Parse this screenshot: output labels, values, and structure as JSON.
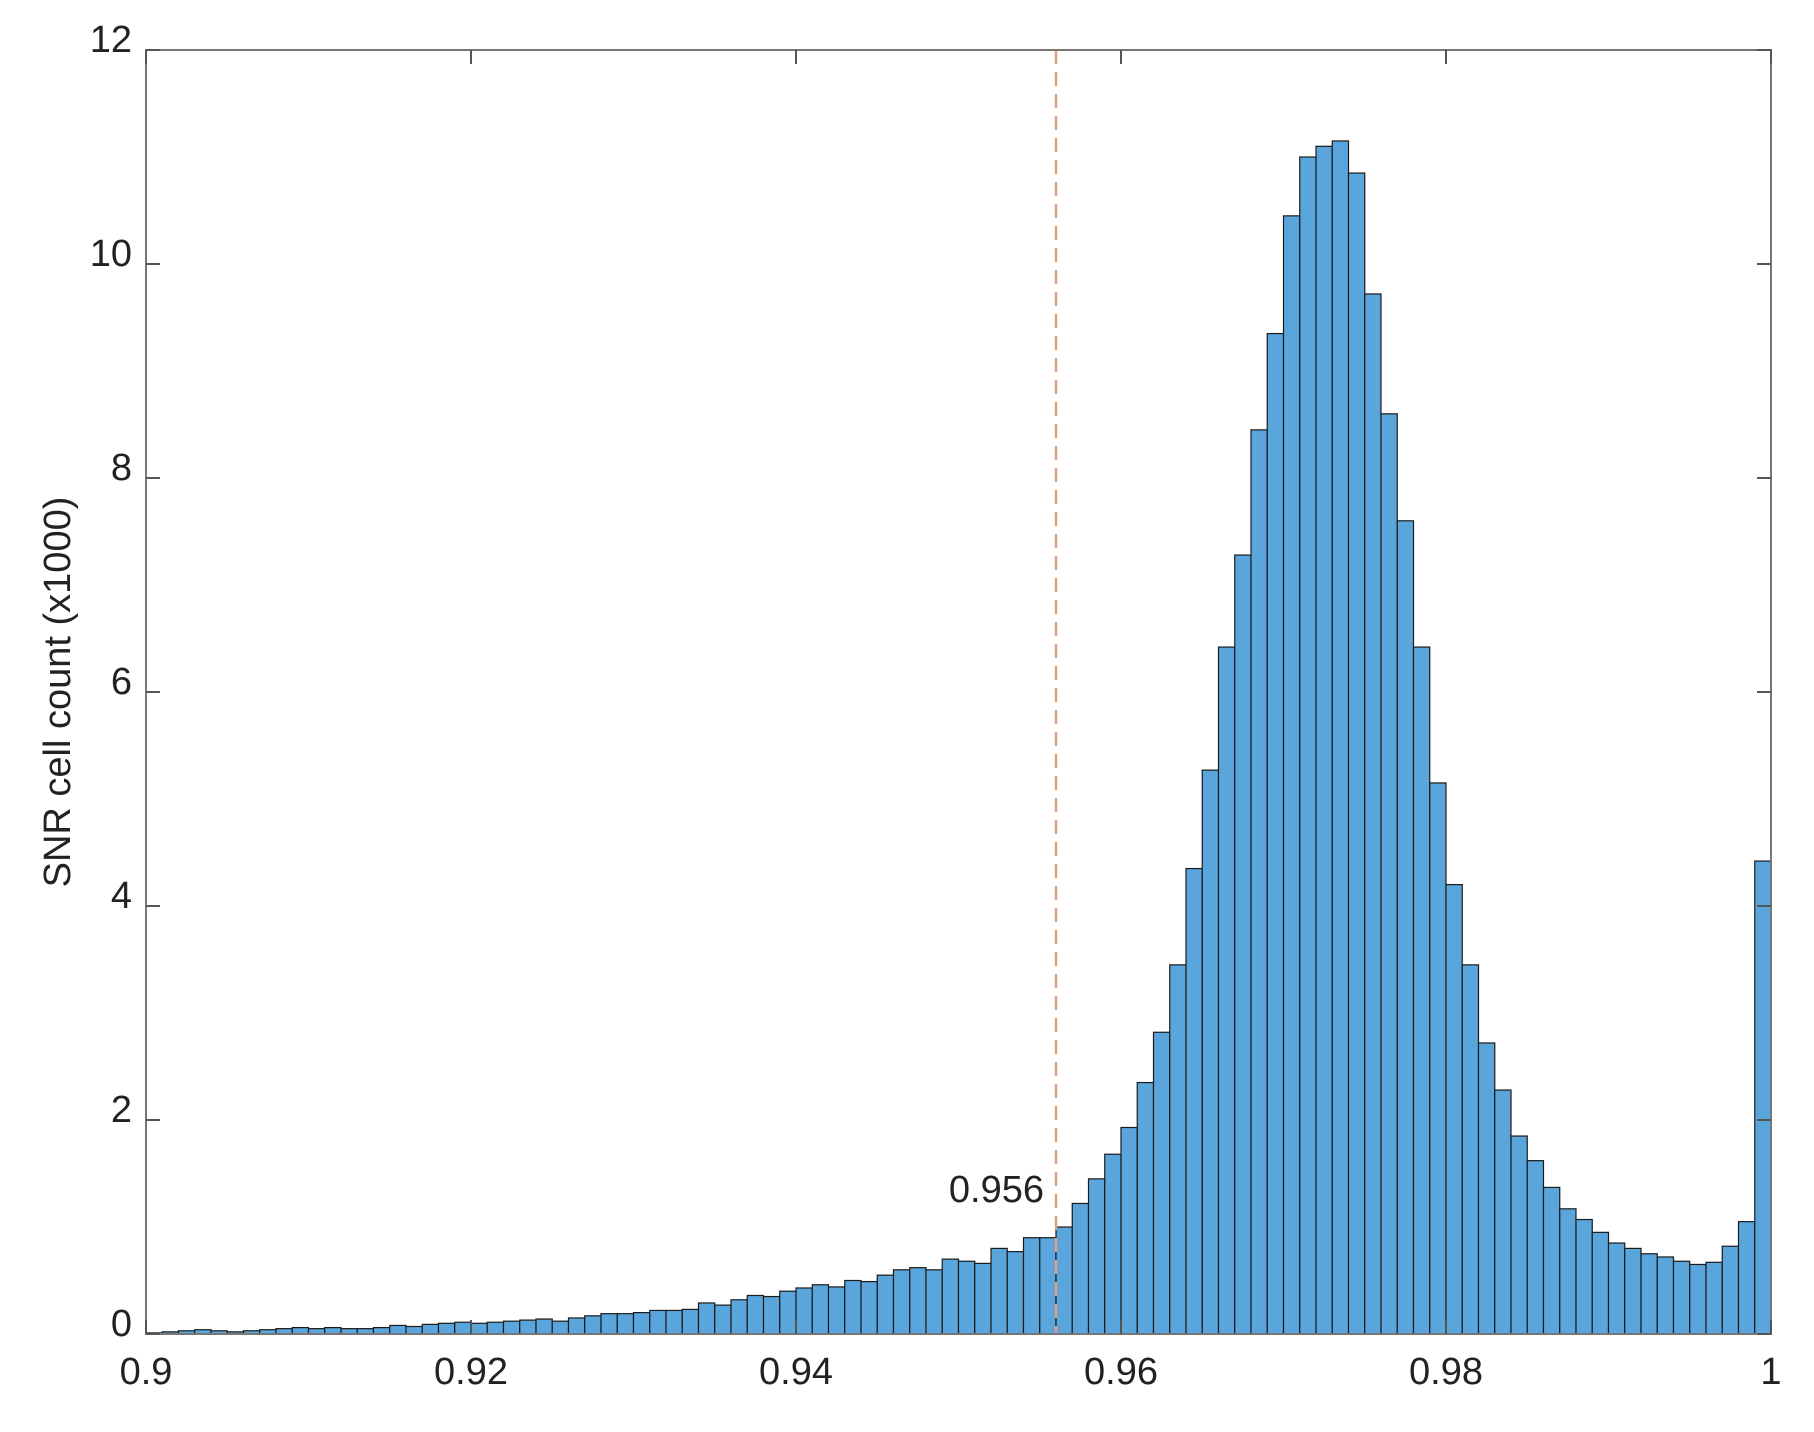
{
  "chart_data": {
    "type": "histogram",
    "ylabel": "SNR cell count (x1000)",
    "bins": [
      0.9,
      0.901,
      0.902,
      0.903,
      0.904,
      0.905,
      0.906,
      0.907,
      0.908,
      0.909,
      0.91,
      0.911,
      0.912,
      0.913,
      0.914,
      0.915,
      0.916,
      0.917,
      0.918,
      0.919,
      0.92,
      0.921,
      0.922,
      0.923,
      0.924,
      0.925,
      0.926,
      0.927,
      0.928,
      0.929,
      0.93,
      0.931,
      0.932,
      0.933,
      0.934,
      0.935,
      0.936,
      0.937,
      0.938,
      0.939,
      0.94,
      0.941,
      0.942,
      0.943,
      0.944,
      0.945,
      0.946,
      0.947,
      0.948,
      0.949,
      0.95,
      0.951,
      0.952,
      0.953,
      0.954,
      0.955,
      0.956,
      0.957,
      0.958,
      0.959,
      0.96,
      0.961,
      0.962,
      0.963,
      0.964,
      0.965,
      0.966,
      0.967,
      0.968,
      0.969,
      0.97,
      0.971,
      0.972,
      0.973,
      0.974,
      0.975,
      0.976,
      0.977,
      0.978,
      0.979,
      0.98,
      0.981,
      0.982,
      0.983,
      0.984,
      0.985,
      0.986,
      0.987,
      0.988,
      0.989,
      0.99,
      0.991,
      0.992,
      0.993,
      0.994,
      0.995,
      0.996,
      0.997,
      0.998,
      0.999,
      1
    ],
    "values": [
      0.01,
      0.02,
      0.03,
      0.04,
      0.03,
      0.02,
      0.03,
      0.04,
      0.05,
      0.06,
      0.05,
      0.06,
      0.05,
      0.05,
      0.06,
      0.08,
      0.07,
      0.09,
      0.1,
      0.11,
      0.1,
      0.11,
      0.12,
      0.13,
      0.14,
      0.12,
      0.15,
      0.17,
      0.19,
      0.19,
      0.2,
      0.22,
      0.22,
      0.23,
      0.29,
      0.27,
      0.32,
      0.36,
      0.35,
      0.4,
      0.43,
      0.46,
      0.44,
      0.5,
      0.49,
      0.55,
      0.6,
      0.62,
      0.6,
      0.7,
      0.68,
      0.66,
      0.8,
      0.77,
      0.9,
      0.9,
      1.0,
      1.22,
      1.45,
      1.68,
      1.93,
      2.35,
      2.82,
      3.45,
      4.35,
      5.27,
      6.42,
      7.28,
      8.45,
      9.35,
      10.45,
      11.0,
      11.1,
      11.15,
      10.85,
      9.72,
      8.6,
      7.6,
      6.42,
      5.15,
      4.2,
      3.45,
      2.72,
      2.28,
      1.85,
      1.62,
      1.37,
      1.17,
      1.07,
      0.95,
      0.85,
      0.8,
      0.75,
      0.72,
      0.68,
      0.65,
      0.67,
      0.82,
      1.05,
      4.42
    ],
    "color": "#5aa5dc",
    "xlim": [
      0.9,
      1
    ],
    "xticks": [
      0.9,
      0.92,
      0.94,
      0.96,
      0.98,
      1
    ],
    "ylim": [
      0,
      12
    ],
    "yticks": [
      0,
      2,
      4,
      6,
      8,
      10,
      12
    ],
    "vline": 0.956,
    "vline_color": "#e0a080"
  }
}
